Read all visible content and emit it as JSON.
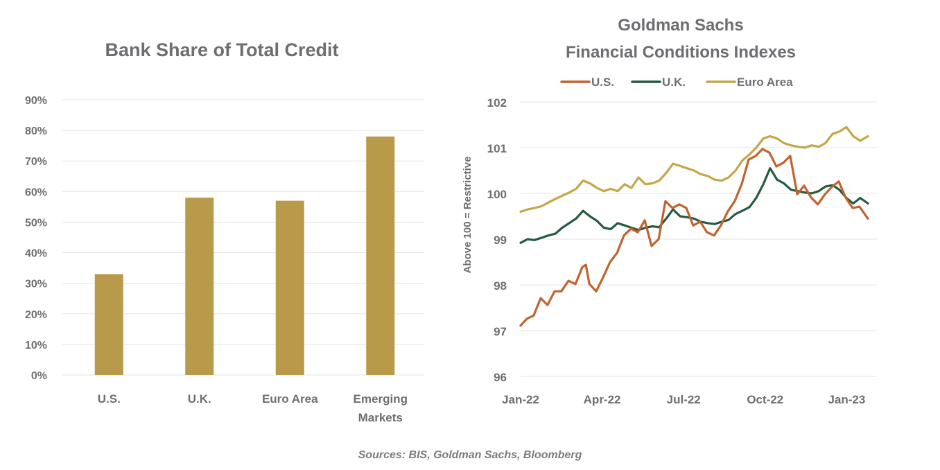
{
  "source_note": "Sources: BIS, Goldman Sachs, Bloomberg",
  "colors": {
    "gold": "#b89a4a",
    "us": "#c0632f",
    "uk": "#235a40",
    "euro": "#c4a64a",
    "text": "#6d6e71",
    "grid": "#e3e3e3"
  },
  "chart_data": [
    {
      "type": "bar",
      "title": "Bank Share of Total Credit",
      "categories": [
        "U.S.",
        "U.K.",
        "Euro Area",
        "Emerging Markets"
      ],
      "category_lines": [
        [
          "U.S."
        ],
        [
          "U.K."
        ],
        [
          "Euro Area"
        ],
        [
          "Emerging",
          "Markets"
        ]
      ],
      "values": [
        33,
        58,
        57,
        78
      ],
      "unit": "%",
      "ylim": [
        0,
        90
      ],
      "yticks": [
        0,
        10,
        20,
        30,
        40,
        50,
        60,
        70,
        80,
        90
      ],
      "ytick_labels": [
        "0%",
        "10%",
        "20%",
        "30%",
        "40%",
        "50%",
        "60%",
        "70%",
        "80%",
        "90%"
      ],
      "xlabel": "",
      "ylabel": "",
      "grid": true,
      "legend": "none"
    },
    {
      "type": "line",
      "title_lines": [
        "Goldman Sachs",
        "Financial Conditions  Indexes"
      ],
      "ylabel": "Above 100  = Restrictive",
      "xlabel": "",
      "ylim": [
        96,
        102
      ],
      "yticks": [
        96,
        97,
        98,
        99,
        100,
        101,
        102
      ],
      "ytick_labels": [
        "96",
        "97",
        "98",
        "99",
        "100",
        "101",
        "102"
      ],
      "x_unit": "months since Jan-2022",
      "xlim": [
        0,
        13.1
      ],
      "xticks": [
        0,
        3,
        6,
        9,
        12
      ],
      "xtick_labels": [
        "Jan-22",
        "Apr-22",
        "Jul-22",
        "Oct-22",
        "Jan-23"
      ],
      "grid": true,
      "legend": "top-center",
      "series": [
        {
          "name": "U.S.",
          "color": "#c0632f",
          "x": [
            0,
            0.23,
            0.48,
            0.74,
            0.99,
            1.25,
            1.5,
            1.76,
            2.02,
            2.27,
            2.4,
            2.53,
            2.78,
            3.04,
            3.29,
            3.55,
            3.8,
            4.06,
            4.31,
            4.57,
            4.82,
            5.08,
            5.33,
            5.59,
            5.84,
            6.1,
            6.35,
            6.61,
            6.86,
            7.12,
            7.37,
            7.63,
            7.88,
            8.14,
            8.39,
            8.65,
            8.9,
            9.16,
            9.41,
            9.67,
            9.92,
            10.18,
            10.43,
            10.69,
            10.94,
            11.2,
            11.45,
            11.71,
            11.96,
            12.22,
            12.47,
            12.78
          ],
          "values": [
            97.11,
            97.26,
            97.33,
            97.71,
            97.56,
            97.86,
            97.86,
            98.09,
            98.02,
            98.39,
            98.44,
            98.02,
            97.86,
            98.17,
            98.5,
            98.7,
            99.08,
            99.23,
            99.15,
            99.41,
            98.85,
            99.0,
            99.83,
            99.68,
            99.76,
            99.68,
            99.3,
            99.38,
            99.15,
            99.08,
            99.3,
            99.61,
            99.83,
            100.21,
            100.74,
            100.82,
            100.97,
            100.89,
            100.59,
            100.67,
            100.82,
            99.98,
            100.17,
            99.91,
            99.76,
            99.98,
            100.14,
            100.26,
            99.91,
            99.68,
            99.71,
            99.45
          ]
        },
        {
          "name": "U.K.",
          "color": "#235a40",
          "x": [
            0,
            0.26,
            0.51,
            0.77,
            1.02,
            1.28,
            1.53,
            1.79,
            2.04,
            2.3,
            2.55,
            2.81,
            3.06,
            3.32,
            3.57,
            3.83,
            4.08,
            4.34,
            4.59,
            4.85,
            5.1,
            5.36,
            5.61,
            5.87,
            6.12,
            6.38,
            6.63,
            6.89,
            7.14,
            7.4,
            7.65,
            7.91,
            8.16,
            8.42,
            8.67,
            8.93,
            9.18,
            9.44,
            9.69,
            9.95,
            10.2,
            10.46,
            10.71,
            10.97,
            11.22,
            11.48,
            11.73,
            11.99,
            12.24,
            12.5,
            12.78
          ],
          "values": [
            98.92,
            99.0,
            98.98,
            99.03,
            99.08,
            99.12,
            99.25,
            99.35,
            99.45,
            99.62,
            99.5,
            99.4,
            99.25,
            99.22,
            99.35,
            99.3,
            99.25,
            99.2,
            99.25,
            99.28,
            99.26,
            99.45,
            99.65,
            99.5,
            99.48,
            99.45,
            99.38,
            99.35,
            99.33,
            99.38,
            99.42,
            99.55,
            99.62,
            99.7,
            99.9,
            100.2,
            100.55,
            100.3,
            100.22,
            100.08,
            100.05,
            100.02,
            100.0,
            100.05,
            100.15,
            100.18,
            100.08,
            99.9,
            99.78,
            99.9,
            99.78
          ]
        },
        {
          "name": "Euro Area",
          "color": "#c4a64a",
          "x": [
            0,
            0.26,
            0.51,
            0.77,
            1.02,
            1.28,
            1.53,
            1.79,
            2.04,
            2.3,
            2.55,
            2.81,
            3.06,
            3.32,
            3.57,
            3.83,
            4.08,
            4.34,
            4.59,
            4.85,
            5.1,
            5.36,
            5.61,
            5.87,
            6.12,
            6.38,
            6.63,
            6.89,
            7.14,
            7.4,
            7.65,
            7.91,
            8.16,
            8.42,
            8.67,
            8.93,
            9.18,
            9.44,
            9.69,
            9.95,
            10.2,
            10.46,
            10.71,
            10.97,
            11.22,
            11.48,
            11.73,
            11.99,
            12.24,
            12.5,
            12.78
          ],
          "values": [
            99.6,
            99.65,
            99.68,
            99.72,
            99.8,
            99.88,
            99.95,
            100.02,
            100.1,
            100.28,
            100.22,
            100.12,
            100.05,
            100.1,
            100.05,
            100.2,
            100.12,
            100.35,
            100.2,
            100.22,
            100.28,
            100.45,
            100.65,
            100.6,
            100.55,
            100.5,
            100.42,
            100.38,
            100.3,
            100.28,
            100.35,
            100.5,
            100.72,
            100.85,
            101.0,
            101.2,
            101.25,
            101.2,
            101.1,
            101.05,
            101.02,
            101.0,
            101.05,
            101.02,
            101.1,
            101.3,
            101.35,
            101.45,
            101.25,
            101.15,
            101.25
          ]
        }
      ]
    }
  ]
}
